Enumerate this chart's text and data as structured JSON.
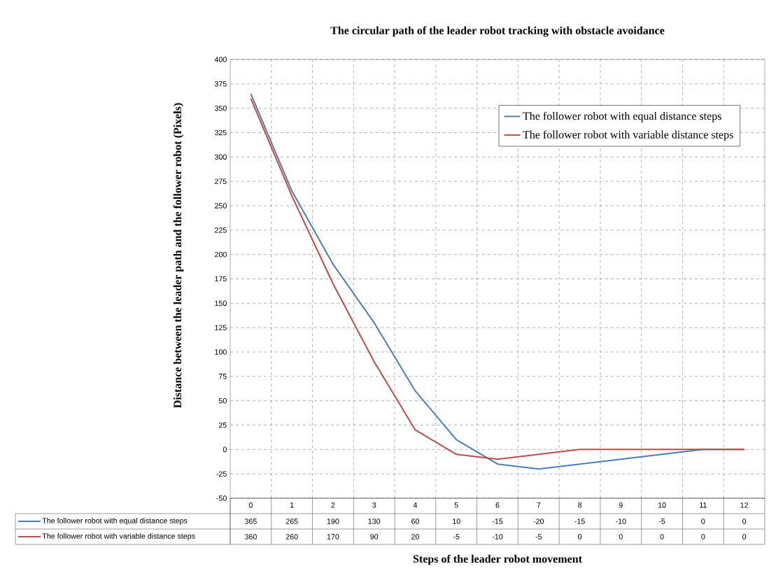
{
  "chart_data": {
    "type": "line",
    "title": "The circular path of the leader robot tracking with obstacle avoidance",
    "xlabel": "Steps of the leader robot movement",
    "ylabel": "Distance between the leader path and the follower robot  (Pixels)",
    "categories": [
      "0",
      "1",
      "2",
      "3",
      "4",
      "5",
      "6",
      "7",
      "8",
      "9",
      "10",
      "11",
      "12"
    ],
    "series": [
      {
        "name": "The follower robot with equal distance steps",
        "color": "#4a7ebb",
        "values": [
          365,
          265,
          190,
          130,
          60,
          10,
          -15,
          -20,
          -15,
          -10,
          -5,
          0,
          0
        ]
      },
      {
        "name": "The follower robot with variable distance steps",
        "color": "#be4b48",
        "values": [
          360,
          260,
          170,
          90,
          20,
          -5,
          -10,
          -5,
          0,
          0,
          0,
          0,
          0
        ]
      }
    ],
    "ylim": [
      -50,
      400
    ],
    "yticks": [
      -50,
      -25,
      0,
      25,
      50,
      75,
      100,
      125,
      150,
      175,
      200,
      225,
      250,
      275,
      300,
      325,
      350,
      375,
      400
    ],
    "grid": true,
    "legend": "top right",
    "data_labels": true,
    "marker": "none",
    "line_style": "solid"
  }
}
